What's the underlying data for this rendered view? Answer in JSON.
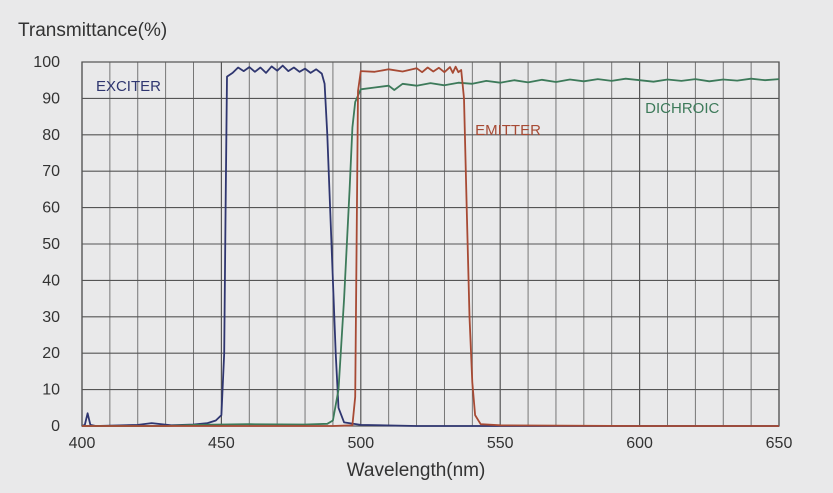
{
  "chart_data": {
    "type": "line",
    "ylabel": "Transmittance(%)",
    "xlabel": "Wavelength(nm)",
    "xlim": [
      400,
      650
    ],
    "ylim": [
      0,
      100
    ],
    "x_ticks": [
      400,
      450,
      500,
      550,
      600,
      650
    ],
    "y_ticks": [
      0,
      10,
      20,
      30,
      40,
      50,
      60,
      70,
      80,
      90,
      100
    ],
    "grid": true,
    "series": [
      {
        "name": "EXCITER",
        "color": "#2f3670",
        "label_anchor": [
          405,
          92
        ],
        "points": [
          [
            400,
            0
          ],
          [
            401,
            0.3
          ],
          [
            402,
            3.5
          ],
          [
            403,
            0.3
          ],
          [
            405,
            0
          ],
          [
            420,
            0.3
          ],
          [
            425,
            0.8
          ],
          [
            432,
            0.2
          ],
          [
            440,
            0.4
          ],
          [
            445,
            0.8
          ],
          [
            448,
            1.5
          ],
          [
            450,
            3
          ],
          [
            451,
            20
          ],
          [
            451.5,
            60
          ],
          [
            452,
            96
          ],
          [
            454,
            97
          ],
          [
            456,
            98.5
          ],
          [
            458,
            97.5
          ],
          [
            460,
            98.6
          ],
          [
            462,
            97.3
          ],
          [
            464,
            98.5
          ],
          [
            466,
            97
          ],
          [
            468,
            98.8
          ],
          [
            470,
            97.6
          ],
          [
            472,
            99
          ],
          [
            474,
            97.5
          ],
          [
            476,
            98.5
          ],
          [
            478,
            97.3
          ],
          [
            480,
            98.2
          ],
          [
            482,
            97
          ],
          [
            484,
            98
          ],
          [
            486,
            96.8
          ],
          [
            487,
            94
          ],
          [
            488,
            80
          ],
          [
            489,
            60
          ],
          [
            490,
            40
          ],
          [
            491,
            20
          ],
          [
            492,
            5
          ],
          [
            494,
            1
          ],
          [
            500,
            0.3
          ],
          [
            520,
            0
          ],
          [
            560,
            0
          ],
          [
            650,
            0
          ]
        ]
      },
      {
        "name": "DICHROIC",
        "color": "#3d7a5a",
        "label_anchor": [
          602,
          86
        ],
        "points": [
          [
            400,
            0
          ],
          [
            430,
            0
          ],
          [
            440,
            0.3
          ],
          [
            460,
            0.5
          ],
          [
            480,
            0.4
          ],
          [
            488,
            0.6
          ],
          [
            490,
            1.5
          ],
          [
            492,
            10
          ],
          [
            494,
            35
          ],
          [
            496,
            65
          ],
          [
            497,
            82
          ],
          [
            498,
            89
          ],
          [
            500,
            92.5
          ],
          [
            505,
            93
          ],
          [
            510,
            93.5
          ],
          [
            512,
            92.3
          ],
          [
            515,
            94
          ],
          [
            520,
            93.5
          ],
          [
            525,
            94.2
          ],
          [
            530,
            93.6
          ],
          [
            535,
            94.3
          ],
          [
            540,
            94
          ],
          [
            545,
            94.8
          ],
          [
            550,
            94.3
          ],
          [
            555,
            95
          ],
          [
            560,
            94.4
          ],
          [
            565,
            95.1
          ],
          [
            570,
            94.5
          ],
          [
            575,
            95.2
          ],
          [
            580,
            94.7
          ],
          [
            585,
            95.3
          ],
          [
            590,
            94.8
          ],
          [
            595,
            95.4
          ],
          [
            600,
            95
          ],
          [
            605,
            94.6
          ],
          [
            610,
            95.2
          ],
          [
            615,
            94.8
          ],
          [
            620,
            95.3
          ],
          [
            625,
            94.7
          ],
          [
            630,
            95.2
          ],
          [
            635,
            94.9
          ],
          [
            640,
            95.4
          ],
          [
            645,
            95
          ],
          [
            650,
            95.3
          ]
        ]
      },
      {
        "name": "EMITTER",
        "color": "#a74a34",
        "label_anchor": [
          541,
          80
        ],
        "points": [
          [
            400,
            0
          ],
          [
            490,
            0
          ],
          [
            497,
            0.2
          ],
          [
            498,
            8
          ],
          [
            498.5,
            50
          ],
          [
            499,
            92
          ],
          [
            500,
            97.5
          ],
          [
            505,
            97.3
          ],
          [
            510,
            98
          ],
          [
            515,
            97.4
          ],
          [
            520,
            98.3
          ],
          [
            522,
            97.2
          ],
          [
            524,
            98.5
          ],
          [
            526,
            97.4
          ],
          [
            528,
            98.4
          ],
          [
            530,
            97.2
          ],
          [
            532,
            98.6
          ],
          [
            533,
            97
          ],
          [
            534,
            98.7
          ],
          [
            535,
            97.2
          ],
          [
            536,
            97.8
          ],
          [
            537,
            90
          ],
          [
            538,
            60
          ],
          [
            539,
            30
          ],
          [
            540,
            12
          ],
          [
            541,
            3
          ],
          [
            543,
            0.5
          ],
          [
            550,
            0.2
          ],
          [
            600,
            0
          ],
          [
            650,
            0
          ]
        ]
      }
    ]
  }
}
